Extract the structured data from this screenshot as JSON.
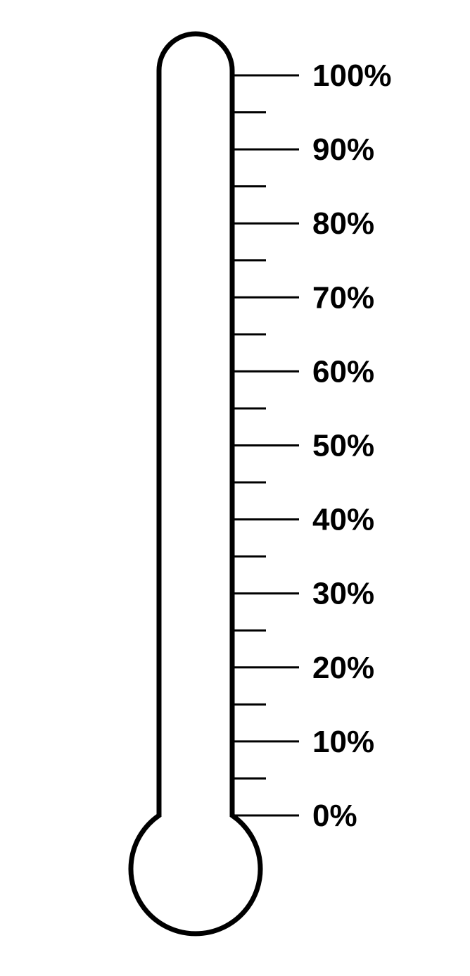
{
  "thermometer": {
    "fill_level_percent": 0,
    "scale": {
      "min": 0,
      "max": 100,
      "major_step": 10,
      "minor_step": 5,
      "unit_suffix": "%",
      "major_labels": [
        "100%",
        "90%",
        "80%",
        "70%",
        "60%",
        "50%",
        "40%",
        "30%",
        "20%",
        "10%",
        "0%"
      ]
    },
    "colors": {
      "outline": "#000000",
      "background": "#ffffff"
    }
  }
}
